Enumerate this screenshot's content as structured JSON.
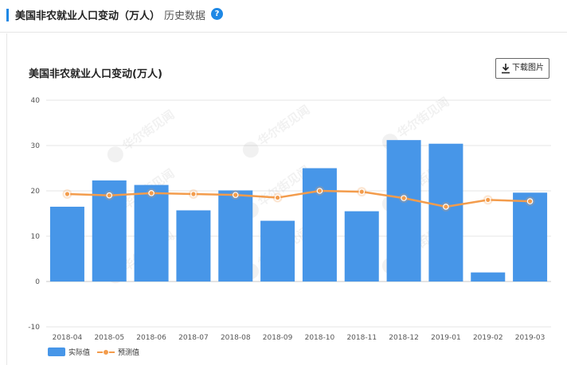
{
  "header": {
    "title": "美国非农就业人口变动（万人）",
    "tab": "历史数据",
    "help": "?"
  },
  "toolbar": {
    "download_label": "下载图片",
    "download_icon": "download-icon"
  },
  "colors": {
    "accent": "#1e88e5",
    "bar": "#4796e8",
    "line": "#f39c4c"
  },
  "watermark": "华尔街见闻",
  "chart_data": {
    "type": "bar",
    "title": "美国非农就业人口变动(万人)",
    "categories": [
      "2018-04",
      "2018-05",
      "2018-06",
      "2018-07",
      "2018-08",
      "2018-09",
      "2018-10",
      "2018-11",
      "2018-12",
      "2019-01",
      "2019-02",
      "2019-03"
    ],
    "series": [
      {
        "name": "实际值",
        "type": "bar",
        "values": [
          16.5,
          22.3,
          21.3,
          15.7,
          20.1,
          13.4,
          25.0,
          15.5,
          31.2,
          30.4,
          2.0,
          19.6
        ]
      },
      {
        "name": "预测值",
        "type": "line",
        "values": [
          19.3,
          19.0,
          19.5,
          19.3,
          19.1,
          18.5,
          20.0,
          19.8,
          18.4,
          16.5,
          18.0,
          17.7
        ]
      }
    ],
    "ylim": [
      -10,
      40
    ],
    "yticks": [
      -10,
      0,
      10,
      20,
      30,
      40
    ],
    "grid": true,
    "legend": "bottom-left"
  }
}
